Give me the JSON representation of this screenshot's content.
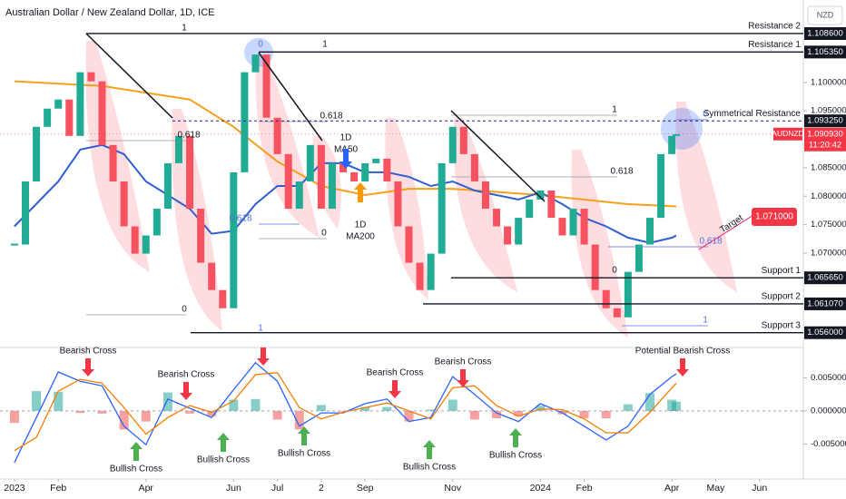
{
  "header": {
    "title": "Australian Dollar / New Zealand Dollar, 1D, ICE",
    "currency": "NZD"
  },
  "chart_data": [
    {
      "type": "candlestick",
      "xlim": [
        -0.33,
        18.0
      ],
      "xticks": [
        {
          "value": 0,
          "label": "2023"
        },
        {
          "value": 1,
          "label": "Feb"
        },
        {
          "value": 3,
          "label": "Apr"
        },
        {
          "value": 5,
          "label": "Jun"
        },
        {
          "value": 6,
          "label": "Jul"
        },
        {
          "value": 7,
          "label": "2"
        },
        {
          "value": 8,
          "label": "Sep"
        },
        {
          "value": 10,
          "label": "Nov"
        },
        {
          "value": 12,
          "label": "2024"
        },
        {
          "value": 13,
          "label": "Feb"
        },
        {
          "value": 15,
          "label": "Apr"
        },
        {
          "value": 16,
          "label": "May"
        },
        {
          "value": 17,
          "label": "Jun"
        }
      ],
      "ylim": [
        1.0534,
        1.1145
      ],
      "yticks": [
        {
          "value": 1.1,
          "label": "1.100000"
        },
        {
          "value": 1.095,
          "label": "1.095000"
        },
        {
          "value": 1.085,
          "label": "1.085000"
        },
        {
          "value": 1.08,
          "label": "1.080000"
        },
        {
          "value": 1.075,
          "label": "1.075000"
        },
        {
          "value": 1.07,
          "label": "1.070000"
        }
      ],
      "up_color": "#22ab94",
      "down_color": "#f7525f",
      "x": [
        0,
        0.25,
        0.5,
        0.75,
        1,
        1.25,
        1.5,
        1.75,
        2,
        2.25,
        2.5,
        2.75,
        3,
        3.25,
        3.5,
        3.75,
        4,
        4.25,
        4.5,
        4.75,
        5,
        5.25,
        5.5,
        5.75,
        6,
        6.25,
        6.5,
        6.75,
        7,
        7.25,
        7.5,
        7.75,
        8,
        8.25,
        8.5,
        8.75,
        9,
        9.25,
        9.5,
        9.75,
        10,
        10.25,
        10.5,
        10.75,
        11,
        11.25,
        11.5,
        11.75,
        12,
        12.25,
        12.5,
        12.75,
        13,
        13.25,
        13.5,
        13.75,
        14,
        14.25,
        14.5,
        14.75,
        15,
        15.1
      ],
      "close": [
        1.0715,
        1.0826,
        1.0922,
        1.0954,
        1.097,
        1.0906,
        1.1018,
        1.1002,
        1.089,
        1.0826,
        1.0747,
        1.0699,
        1.0731,
        1.0778,
        1.0858,
        1.0906,
        1.0778,
        1.0683,
        1.0635,
        1.0603,
        1.0842,
        1.1018,
        1.1049,
        1.0938,
        1.0874,
        1.0778,
        1.0826,
        1.089,
        1.0778,
        1.0858,
        1.0842,
        1.0826,
        1.0858,
        1.0866,
        1.0826,
        1.0747,
        1.0683,
        1.0635,
        1.0699,
        1.0858,
        1.0922,
        1.0874,
        1.0826,
        1.0778,
        1.0747,
        1.0715,
        1.0762,
        1.0794,
        1.081,
        1.0762,
        1.0731,
        1.0778,
        1.0715,
        1.0635,
        1.0603,
        1.0587,
        1.0667,
        1.0715,
        1.0762,
        1.0874,
        1.0906,
        1.0909
      ],
      "lines": [
        {
          "color": "#f5a11c",
          "x": [
            0,
            2,
            4,
            5,
            6,
            7,
            8,
            9,
            10,
            12,
            14,
            15.1
          ],
          "values": [
            1.1002,
            1.0994,
            1.097,
            1.0922,
            1.0861,
            1.0818,
            1.0802,
            1.0813,
            1.0813,
            1.0802,
            1.0786,
            1.0782
          ]
        },
        {
          "color": "#2f5fd0",
          "x": [
            0,
            1,
            1.5,
            2,
            2.5,
            3,
            3.5,
            4,
            4.5,
            5,
            5.5,
            6,
            6.5,
            7,
            7.5,
            8,
            8.5,
            9,
            9.5,
            10,
            10.5,
            11,
            11.5,
            12,
            12.5,
            13,
            13.5,
            14,
            14.5,
            15,
            15.1
          ],
          "values": [
            1.0747,
            1.0826,
            1.0882,
            1.089,
            1.0874,
            1.0826,
            1.0802,
            1.0778,
            1.0734,
            1.0739,
            1.0786,
            1.0818,
            1.0818,
            1.0858,
            1.0858,
            1.0842,
            1.0842,
            1.0834,
            1.0818,
            1.0826,
            1.081,
            1.0802,
            1.0794,
            1.0807,
            1.0786,
            1.0762,
            1.0747,
            1.0727,
            1.0718,
            1.0727,
            1.0731
          ]
        }
      ],
      "levels": [
        {
          "name": "Resistance 2",
          "value": 1.1086,
          "label": "1.108600"
        },
        {
          "name": "Resistance 1",
          "value": 1.10535,
          "label": "1.105350"
        },
        {
          "name": "Symmetrical Resistance",
          "value": 1.09325,
          "label": "1.093250"
        },
        {
          "name": "Support 1",
          "value": 1.06565,
          "label": "1.065650"
        },
        {
          "name": "Support 2",
          "value": 1.06107,
          "label": "1.061070"
        },
        {
          "name": "Support 3",
          "value": 1.056,
          "label": "1.056000"
        }
      ],
      "last": {
        "symbol": "AUDNZD",
        "value": 1.09093,
        "label": "1.090930",
        "countdown": "11:20:42",
        "color": "#f23645"
      },
      "target": {
        "text": "Target",
        "price": "1.071000"
      },
      "ma_labels": [
        [
          "1D",
          "MA50"
        ],
        [
          "1D",
          "MA200"
        ]
      ],
      "fib_labels": [
        "1",
        "0",
        "1",
        "0.618",
        "0",
        "0.618",
        "0.618",
        "0",
        "1",
        "1",
        "0.618",
        "0",
        "0",
        "0.618",
        "1"
      ]
    },
    {
      "type": "macd",
      "xlim": [
        -0.33,
        18.0
      ],
      "ylim": [
        -0.0103,
        0.0096
      ],
      "yticks": [
        {
          "value": 0.005,
          "label": "0.005000"
        },
        {
          "value": 0,
          "label": "0.000000"
        },
        {
          "value": -0.005,
          "label": "-0.005000"
        }
      ],
      "x": [
        0,
        0.5,
        1,
        1.5,
        2,
        2.5,
        3,
        3.5,
        4,
        4.5,
        5,
        5.5,
        6,
        6.5,
        7,
        7.5,
        8,
        8.5,
        9,
        9.5,
        10,
        10.5,
        11,
        11.5,
        12,
        12.5,
        13,
        13.5,
        14,
        14.5,
        15,
        15.1
      ],
      "macd": {
        "color": "#2962ff",
        "values": [
          -0.0078,
          -0.001,
          0.0059,
          0.0045,
          0.0038,
          -0.0023,
          -0.0051,
          0.0018,
          0.0004,
          -0.001,
          0.0032,
          0.0073,
          0.0045,
          -0.0023,
          -0.0003,
          -0.0003,
          0.0011,
          0.0018,
          -0.0016,
          -0.001,
          0.0052,
          0.0025,
          -0.0003,
          -0.0016,
          0.0011,
          -0.0003,
          -0.0023,
          -0.0044,
          -0.0023,
          0.0025,
          0.0052,
          0.0056
        ]
      },
      "signal": {
        "color": "#f57c00",
        "values": [
          -0.006,
          -0.004,
          0.003,
          0.0048,
          0.0042,
          0.0005,
          -0.0035,
          -0.001,
          0.0008,
          -0.0002,
          0.0015,
          0.0055,
          0.0058,
          0.0005,
          -0.0012,
          -0.0002,
          0.0005,
          0.0012,
          0.0,
          -0.0012,
          0.0035,
          0.0038,
          0.0008,
          -0.0008,
          0.0003,
          0.0002,
          -0.0012,
          -0.0033,
          -0.0033,
          -0.0002,
          0.0035,
          0.0042
        ]
      },
      "histogram": {
        "up_color": "#26a69a",
        "down_color": "#ef5350",
        "values": [
          -0.0018,
          0.003,
          0.0029,
          -0.0003,
          -0.0004,
          -0.0028,
          -0.0016,
          0.0028,
          -0.0004,
          -0.0008,
          0.0017,
          0.0018,
          -0.0013,
          -0.0028,
          0.0009,
          -0.0001,
          0.0006,
          0.0006,
          -0.0016,
          0.0002,
          0.0017,
          -0.0013,
          -0.0011,
          -0.0008,
          0.0008,
          -0.0005,
          -0.0011,
          -0.0011,
          0.001,
          0.0027,
          0.0017,
          0.0014
        ]
      },
      "bearish": [
        "Bearish Cross",
        "Bearish Cross",
        "Bearish Cross",
        "Bearish Cross",
        "Potential Bearish Cross"
      ],
      "bullish": [
        "Bullish Cross",
        "Bullish Cross",
        "Bullish Cross",
        "Bullish Cross",
        "Bullish Cross"
      ]
    }
  ]
}
